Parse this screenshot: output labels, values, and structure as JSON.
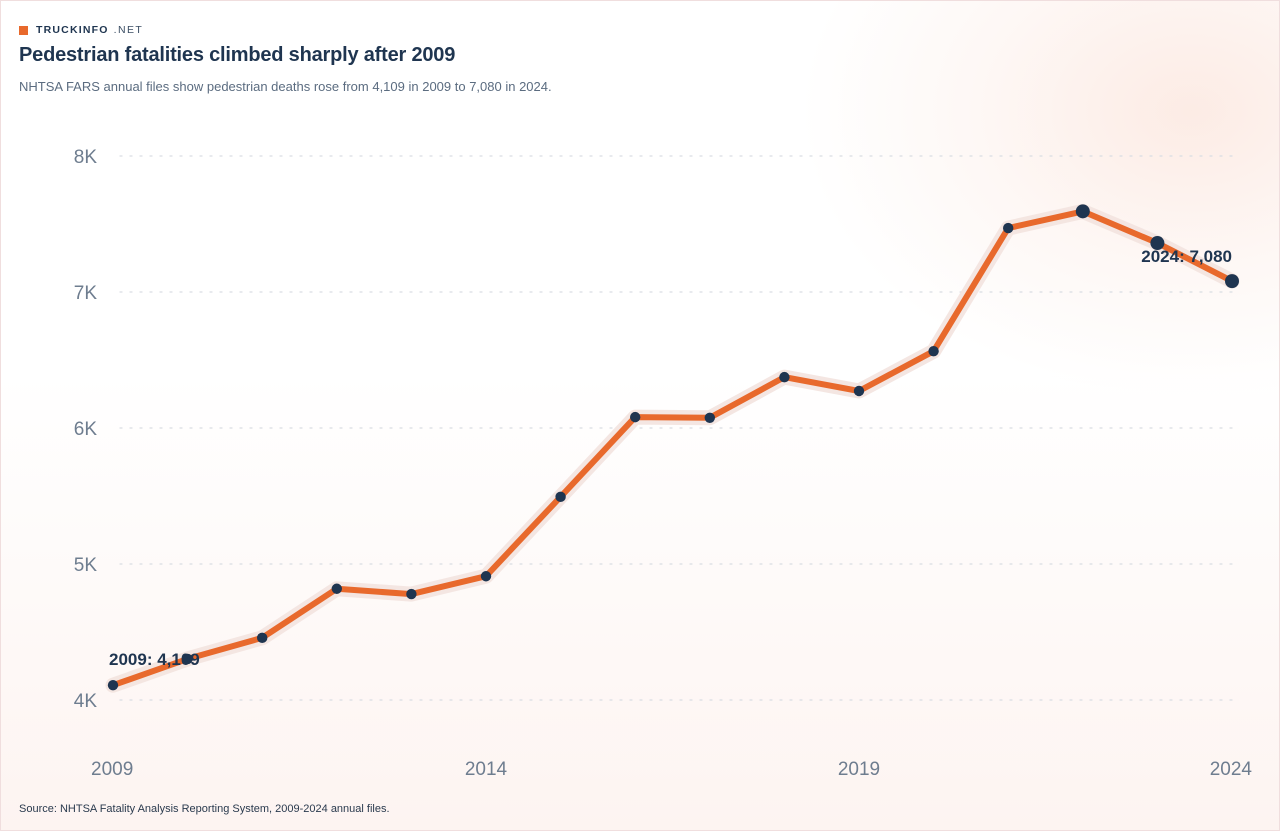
{
  "brand": {
    "name": "TRUCKINFO",
    "suffix": ".NET"
  },
  "title": "Pedestrian fatalities climbed sharply after 2009",
  "subtitle": "NHTSA FARS annual files show pedestrian deaths rose from 4,109 in 2009 to 7,080 in 2024.",
  "source": "Source: NHTSA Fatality Analysis Reporting System, 2009-2024 annual files.",
  "colors": {
    "line": "#e8692c",
    "halo": "#f3e3df",
    "point": "#1f3550",
    "grid": "#d9dde3",
    "text": "#1f3550"
  },
  "chart_data": {
    "type": "line",
    "title": "Pedestrian fatalities climbed sharply after 2009",
    "xlabel": "",
    "ylabel": "",
    "x": [
      2009,
      2010,
      2011,
      2012,
      2013,
      2014,
      2015,
      2016,
      2017,
      2018,
      2019,
      2020,
      2021,
      2022,
      2023,
      2024
    ],
    "values": [
      4109,
      4302,
      4457,
      4818,
      4779,
      4910,
      5494,
      6080,
      6075,
      6374,
      6272,
      6565,
      7470,
      7593,
      7360,
      7080
    ],
    "ylim": [
      4000,
      8000
    ],
    "xlim": [
      2009,
      2024
    ],
    "y_ticks": [
      4000,
      5000,
      6000,
      7000,
      8000
    ],
    "y_tick_labels": [
      "4K",
      "5K",
      "6K",
      "7K",
      "8K"
    ],
    "x_ticks": [
      2009,
      2014,
      2019,
      2024
    ],
    "x_tick_labels": [
      "2009",
      "2014",
      "2019",
      "2024"
    ],
    "grid": "horizontal dotted",
    "annotations": [
      {
        "x": 2009,
        "label": "2009: 4,109"
      },
      {
        "x": 2024,
        "label": "2024: 7,080"
      }
    ],
    "highlighted_points": [
      2022,
      2023,
      2024
    ]
  }
}
